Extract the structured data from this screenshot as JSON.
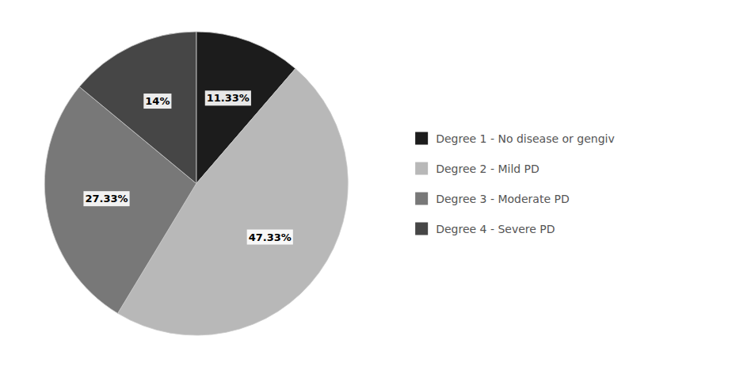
{
  "chart_data": {
    "type": "pie",
    "categories": [
      "Degree 1 - No disease or gengiv",
      "Degree 2 - Mild PD",
      "Degree 3 - Moderate PD",
      "Degree 4 - Severe PD"
    ],
    "values": [
      11.33,
      47.33,
      27.33,
      14
    ],
    "value_labels": [
      "11.33%",
      "47.33%",
      "27.33%",
      "14%"
    ],
    "colors": [
      "#1c1c1c",
      "#b8b8b8",
      "#787878",
      "#464646"
    ],
    "data_labels": true,
    "legend": "right"
  }
}
